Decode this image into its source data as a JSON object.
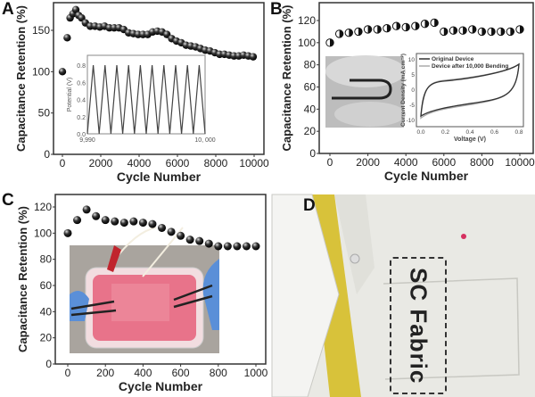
{
  "panels": {
    "a": "A",
    "b": "B",
    "c": "C",
    "d": "D"
  },
  "fabric_label": "SC Fabric",
  "chart_data": [
    {
      "id": "A",
      "type": "scatter",
      "xlabel": "Cycle Number",
      "ylabel": "Capacitance Retention (%)",
      "xlim": [
        -500,
        10300
      ],
      "ylim": [
        0,
        185
      ],
      "xticks": [
        0,
        2000,
        4000,
        6000,
        8000,
        10000
      ],
      "yticks": [
        0,
        50,
        100,
        150
      ],
      "x": [
        0,
        250,
        400,
        550,
        700,
        850,
        1000,
        1200,
        1450,
        1700,
        1950,
        2200,
        2450,
        2700,
        2950,
        3200,
        3450,
        3700,
        3950,
        4200,
        4450,
        4700,
        4950,
        5200,
        5450,
        5700,
        5950,
        6200,
        6450,
        6700,
        6950,
        7200,
        7450,
        7700,
        7950,
        8200,
        8450,
        8700,
        8950,
        9200,
        9450,
        9700,
        9950
      ],
      "y": [
        100,
        141,
        165,
        170,
        175,
        168,
        165,
        159,
        155,
        155,
        154,
        155,
        153,
        153,
        153,
        151,
        147,
        146,
        145,
        145,
        145,
        148,
        149,
        148,
        145,
        140,
        137,
        135,
        132,
        131,
        130,
        128,
        126,
        125,
        123,
        121,
        121,
        120,
        119,
        119,
        120,
        119,
        118
      ],
      "inset": {
        "type": "line",
        "ylabel": "Potential (V)",
        "xticks": [
          "9,990",
          "10, 000"
        ],
        "yticks": [
          0.0,
          0.2,
          0.4,
          0.6,
          0.8
        ],
        "ylim": [
          0,
          0.8
        ],
        "cycles": 10
      }
    },
    {
      "id": "B",
      "type": "scatter",
      "xlabel": "Cycle Number",
      "ylabel": "Capacitance Retention (%)",
      "xlim": [
        -500,
        10300
      ],
      "ylim": [
        0,
        140
      ],
      "xticks": [
        0,
        2000,
        4000,
        6000,
        8000,
        10000
      ],
      "yticks": [
        0,
        20,
        40,
        60,
        80,
        100,
        120
      ],
      "x": [
        0,
        500,
        1000,
        1500,
        2000,
        2500,
        3000,
        3500,
        4000,
        4500,
        5000,
        5500,
        6000,
        6500,
        7000,
        7500,
        8000,
        8500,
        9000,
        9500,
        10000
      ],
      "y": [
        100,
        108,
        109,
        110,
        112,
        112,
        113,
        115,
        114,
        115,
        117,
        118,
        110,
        111,
        111,
        112,
        110,
        110,
        110,
        110,
        112
      ],
      "inset": {
        "type": "line",
        "xlabel": "Voltage (V)",
        "ylabel": "Current Density (mA cm⁻²)",
        "xlim": [
          0,
          0.8
        ],
        "ylim": [
          -12,
          12
        ],
        "xticks": [
          0.0,
          0.2,
          0.4,
          0.6,
          0.8
        ],
        "yticks": [
          -10,
          -5,
          0,
          5,
          10
        ],
        "legend": [
          "Original Device",
          "Device after 10,000 Bending"
        ],
        "legend_position": "top-left"
      }
    },
    {
      "id": "C",
      "type": "scatter",
      "xlabel": "Cycle Number",
      "ylabel": "Capacitance Retention (%)",
      "xlim": [
        -30,
        1050
      ],
      "ylim": [
        0,
        125
      ],
      "xticks": [
        0,
        200,
        400,
        600,
        800,
        1000
      ],
      "yticks": [
        0,
        20,
        40,
        60,
        80,
        100,
        120
      ],
      "x": [
        0,
        50,
        100,
        150,
        200,
        250,
        300,
        350,
        400,
        450,
        500,
        550,
        600,
        650,
        700,
        750,
        800,
        850,
        900,
        950,
        1000
      ],
      "y": [
        100,
        110,
        118,
        113,
        110,
        109,
        108,
        109,
        108,
        107,
        104,
        101,
        98,
        95,
        94,
        92,
        90,
        90,
        90,
        90,
        90
      ]
    }
  ],
  "colors": {
    "marker": "#1a1a1a",
    "axis": "#333333",
    "cv_original": "#333333",
    "cv_bent": "#aaaaaa",
    "solution": "#e8738a",
    "glove": "#5a8fd8",
    "coat": "#e9e9e4",
    "tie": "#d8c23a"
  }
}
